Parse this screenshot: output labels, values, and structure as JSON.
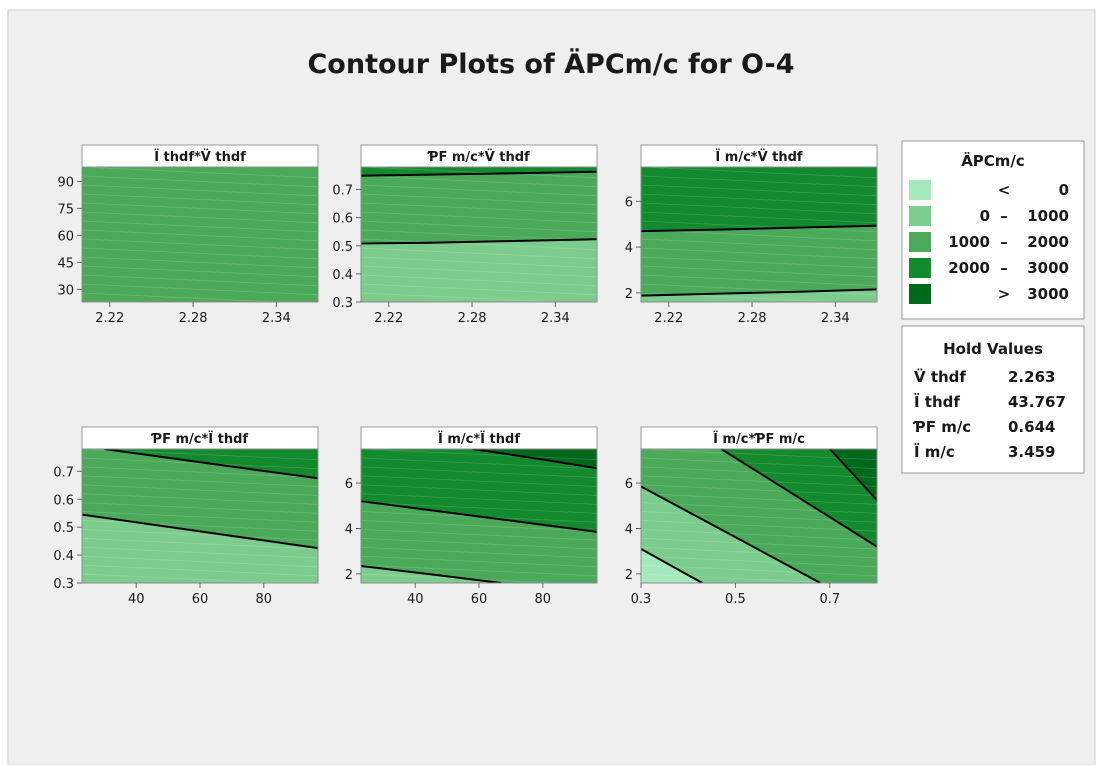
{
  "title": "Contour Plots of ÄPCm/c for O-4",
  "colors": {
    "band_lt0": "#a6e8bd",
    "band_0_1000": "#7ccd8d",
    "band_1000_2000": "#4ba95a",
    "band_2000_3000": "#138a2d",
    "band_gt3000": "#006a1c",
    "figure_bg": "#efefef",
    "contour_line": "#000000"
  },
  "legend": {
    "title": "ÄPCm/c",
    "entries": [
      {
        "op": "<",
        "lo": "",
        "dash": "",
        "hi": "0",
        "color_key": "band_lt0"
      },
      {
        "op": "",
        "lo": "0",
        "dash": "–",
        "hi": "1000",
        "color_key": "band_0_1000"
      },
      {
        "op": "",
        "lo": "1000",
        "dash": "–",
        "hi": "2000",
        "color_key": "band_1000_2000"
      },
      {
        "op": "",
        "lo": "2000",
        "dash": "–",
        "hi": "3000",
        "color_key": "band_2000_3000"
      },
      {
        "op": ">",
        "lo": "",
        "dash": "",
        "hi": "3000",
        "color_key": "band_gt3000"
      }
    ]
  },
  "hold_values": {
    "title": "Hold Values",
    "rows": [
      {
        "label": "V̈ thdf",
        "value": "2.263"
      },
      {
        "label": "Ï thdf",
        "value": "43.767"
      },
      {
        "label": "ƤF m/c",
        "value": "0.644"
      },
      {
        "label": "Ï m/c",
        "value": "3.459"
      }
    ]
  },
  "chart_data": [
    {
      "type": "contour",
      "panel_title": "Ï thdf*V̈ thdf",
      "xlim": [
        2.2,
        2.37
      ],
      "ylim": [
        23,
        98
      ],
      "x_ticks": [
        "2.22",
        "2.28",
        "2.34"
      ],
      "x_tick_values": [
        2.22,
        2.28,
        2.34
      ],
      "y_ticks": [
        "30",
        "45",
        "60",
        "75",
        "90"
      ],
      "y_tick_values": [
        30,
        45,
        60,
        75,
        90
      ],
      "bands": [
        {
          "band": "1000 – 2000",
          "color_key": "band_1000_2000",
          "region": [
            [
              2.2,
              23
            ],
            [
              2.37,
              23
            ],
            [
              2.37,
              98
            ],
            [
              2.2,
              98
            ]
          ]
        }
      ],
      "contours": []
    },
    {
      "type": "contour",
      "panel_title": "ƤF m/c*V̈ thdf",
      "xlim": [
        2.2,
        2.37
      ],
      "ylim": [
        0.3,
        0.78
      ],
      "x_ticks": [
        "2.22",
        "2.28",
        "2.34"
      ],
      "x_tick_values": [
        2.22,
        2.28,
        2.34
      ],
      "y_ticks": [
        "0.3",
        "0.4",
        "0.5",
        "0.6",
        "0.7"
      ],
      "y_tick_values": [
        0.3,
        0.4,
        0.5,
        0.6,
        0.7
      ],
      "bands": [
        {
          "band": "0 – 1000",
          "color_key": "band_0_1000",
          "region": [
            [
              2.2,
              0.3
            ],
            [
              2.37,
              0.3
            ],
            [
              2.37,
              0.523
            ],
            [
              2.2,
              0.508
            ]
          ]
        },
        {
          "band": "1000 – 2000",
          "color_key": "band_1000_2000",
          "region": [
            [
              2.2,
              0.508
            ],
            [
              2.37,
              0.523
            ],
            [
              2.37,
              0.763
            ],
            [
              2.2,
              0.749
            ]
          ]
        },
        {
          "band": "2000 – 3000",
          "color_key": "band_2000_3000",
          "region": [
            [
              2.2,
              0.749
            ],
            [
              2.37,
              0.763
            ],
            [
              2.37,
              0.78
            ],
            [
              2.2,
              0.78
            ]
          ]
        }
      ],
      "contours": [
        {
          "level": 1000,
          "points": [
            [
              2.2,
              0.508
            ],
            [
              2.25,
              0.511
            ],
            [
              2.3,
              0.516
            ],
            [
              2.37,
              0.523
            ]
          ]
        },
        {
          "level": 2000,
          "points": [
            [
              2.2,
              0.749
            ],
            [
              2.25,
              0.753
            ],
            [
              2.3,
              0.757
            ],
            [
              2.37,
              0.763
            ]
          ]
        }
      ]
    },
    {
      "type": "contour",
      "panel_title": "Ï m/c*V̈ thdf",
      "xlim": [
        2.2,
        2.37
      ],
      "ylim": [
        1.6,
        7.5
      ],
      "x_ticks": [
        "2.22",
        "2.28",
        "2.34"
      ],
      "x_tick_values": [
        2.22,
        2.28,
        2.34
      ],
      "y_ticks": [
        "2",
        "4",
        "6"
      ],
      "y_tick_values": [
        2,
        4,
        6
      ],
      "bands": [
        {
          "band": "0 – 1000",
          "color_key": "band_0_1000",
          "region": [
            [
              2.2,
              1.6
            ],
            [
              2.37,
              1.6
            ],
            [
              2.37,
              2.15
            ],
            [
              2.2,
              1.88
            ]
          ]
        },
        {
          "band": "1000 – 2000",
          "color_key": "band_1000_2000",
          "region": [
            [
              2.2,
              1.88
            ],
            [
              2.37,
              2.15
            ],
            [
              2.37,
              4.93
            ],
            [
              2.2,
              4.7
            ]
          ]
        },
        {
          "band": "2000 – 3000",
          "color_key": "band_2000_3000",
          "region": [
            [
              2.2,
              4.7
            ],
            [
              2.37,
              4.93
            ],
            [
              2.37,
              7.5
            ],
            [
              2.2,
              7.5
            ]
          ]
        }
      ],
      "contours": [
        {
          "level": 1000,
          "points": [
            [
              2.2,
              1.88
            ],
            [
              2.26,
              1.97
            ],
            [
              2.32,
              2.06
            ],
            [
              2.37,
              2.15
            ]
          ]
        },
        {
          "level": 2000,
          "points": [
            [
              2.2,
              4.7
            ],
            [
              2.26,
              4.77
            ],
            [
              2.32,
              4.86
            ],
            [
              2.37,
              4.93
            ]
          ]
        }
      ]
    },
    {
      "type": "contour",
      "panel_title": "ƤF m/c*Ï thdf",
      "xlim": [
        23,
        97
      ],
      "ylim": [
        0.3,
        0.78
      ],
      "x_ticks": [
        "40",
        "60",
        "80"
      ],
      "x_tick_values": [
        40,
        60,
        80
      ],
      "y_ticks": [
        "0.3",
        "0.4",
        "0.5",
        "0.6",
        "0.7"
      ],
      "y_tick_values": [
        0.3,
        0.4,
        0.5,
        0.6,
        0.7
      ],
      "bands": [
        {
          "band": "0 – 1000",
          "color_key": "band_0_1000",
          "region": [
            [
              23,
              0.3
            ],
            [
              97,
              0.3
            ],
            [
              97,
              0.425
            ],
            [
              23,
              0.545
            ]
          ]
        },
        {
          "band": "1000 – 2000",
          "color_key": "band_1000_2000",
          "region": [
            [
              23,
              0.545
            ],
            [
              97,
              0.425
            ],
            [
              97,
              0.675
            ],
            [
              30,
              0.78
            ],
            [
              23,
              0.78
            ]
          ]
        },
        {
          "band": "2000 – 3000",
          "color_key": "band_2000_3000",
          "region": [
            [
              30,
              0.78
            ],
            [
              97,
              0.675
            ],
            [
              97,
              0.78
            ]
          ]
        }
      ],
      "contours": [
        {
          "level": 1000,
          "points": [
            [
              23,
              0.545
            ],
            [
              60,
              0.485
            ],
            [
              97,
              0.425
            ]
          ]
        },
        {
          "level": 2000,
          "points": [
            [
              30,
              0.78
            ],
            [
              65,
              0.725
            ],
            [
              97,
              0.675
            ]
          ]
        }
      ]
    },
    {
      "type": "contour",
      "panel_title": "Ï m/c*Ï thdf",
      "xlim": [
        23,
        97
      ],
      "ylim": [
        1.6,
        7.5
      ],
      "x_ticks": [
        "40",
        "60",
        "80"
      ],
      "x_tick_values": [
        40,
        60,
        80
      ],
      "y_ticks": [
        "2",
        "4",
        "6"
      ],
      "y_tick_values": [
        2,
        4,
        6
      ],
      "bands": [
        {
          "band": "0 – 1000",
          "color_key": "band_0_1000",
          "region": [
            [
              23,
              1.6
            ],
            [
              67,
              1.6
            ],
            [
              23,
              2.35
            ]
          ]
        },
        {
          "band": "1000 – 2000",
          "color_key": "band_1000_2000",
          "region": [
            [
              67,
              1.6
            ],
            [
              97,
              1.6
            ],
            [
              97,
              3.85
            ],
            [
              23,
              5.2
            ],
            [
              23,
              2.35
            ]
          ]
        },
        {
          "band": "2000 – 3000",
          "color_key": "band_2000_3000",
          "region": [
            [
              23,
              5.2
            ],
            [
              97,
              3.85
            ],
            [
              97,
              6.65
            ],
            [
              58,
              7.5
            ],
            [
              23,
              7.5
            ]
          ]
        },
        {
          "band": "> 3000",
          "color_key": "band_gt3000",
          "region": [
            [
              58,
              7.5
            ],
            [
              97,
              6.65
            ],
            [
              97,
              7.5
            ]
          ]
        }
      ],
      "contours": [
        {
          "level": 1000,
          "points": [
            [
              23,
              2.35
            ],
            [
              45,
              1.98
            ],
            [
              67,
              1.6
            ]
          ]
        },
        {
          "level": 2000,
          "points": [
            [
              23,
              5.2
            ],
            [
              60,
              4.53
            ],
            [
              97,
              3.85
            ]
          ]
        },
        {
          "level": 3000,
          "points": [
            [
              58,
              7.5
            ],
            [
              78,
              7.08
            ],
            [
              97,
              6.65
            ]
          ]
        }
      ]
    },
    {
      "type": "contour",
      "panel_title": "Ï m/c*ƤF m/c",
      "xlim": [
        0.3,
        0.8
      ],
      "ylim": [
        1.6,
        7.5
      ],
      "x_ticks": [
        "0.3",
        "0.5",
        "0.7"
      ],
      "x_tick_values": [
        0.3,
        0.5,
        0.7
      ],
      "y_ticks": [
        "2",
        "4",
        "6"
      ],
      "y_tick_values": [
        2,
        4,
        6
      ],
      "bands": [
        {
          "band": "< 0",
          "color_key": "band_lt0",
          "region": [
            [
              0.3,
              1.6
            ],
            [
              0.43,
              1.6
            ],
            [
              0.3,
              3.1
            ]
          ]
        },
        {
          "band": "0 – 1000",
          "color_key": "band_0_1000",
          "region": [
            [
              0.43,
              1.6
            ],
            [
              0.68,
              1.6
            ],
            [
              0.3,
              5.85
            ],
            [
              0.3,
              3.1
            ]
          ]
        },
        {
          "band": "1000 – 2000",
          "color_key": "band_1000_2000",
          "region": [
            [
              0.68,
              1.6
            ],
            [
              0.8,
              1.6
            ],
            [
              0.8,
              3.2
            ],
            [
              0.47,
              7.5
            ],
            [
              0.3,
              7.5
            ],
            [
              0.3,
              5.85
            ]
          ]
        },
        {
          "band": "2000 – 3000",
          "color_key": "band_2000_3000",
          "region": [
            [
              0.8,
              3.2
            ],
            [
              0.8,
              5.25
            ],
            [
              0.7,
              7.5
            ],
            [
              0.47,
              7.5
            ]
          ]
        },
        {
          "band": "> 3000",
          "color_key": "band_gt3000",
          "region": [
            [
              0.7,
              7.5
            ],
            [
              0.8,
              5.25
            ],
            [
              0.8,
              7.5
            ]
          ]
        }
      ],
      "contours": [
        {
          "level": 0,
          "points": [
            [
              0.3,
              3.1
            ],
            [
              0.365,
              2.35
            ],
            [
              0.43,
              1.6
            ]
          ]
        },
        {
          "level": 1000,
          "points": [
            [
              0.3,
              5.85
            ],
            [
              0.49,
              3.73
            ],
            [
              0.68,
              1.6
            ]
          ]
        },
        {
          "level": 2000,
          "points": [
            [
              0.47,
              7.5
            ],
            [
              0.635,
              5.35
            ],
            [
              0.8,
              3.2
            ]
          ]
        },
        {
          "level": 3000,
          "points": [
            [
              0.7,
              7.5
            ],
            [
              0.75,
              6.38
            ],
            [
              0.8,
              5.25
            ]
          ]
        }
      ]
    }
  ]
}
